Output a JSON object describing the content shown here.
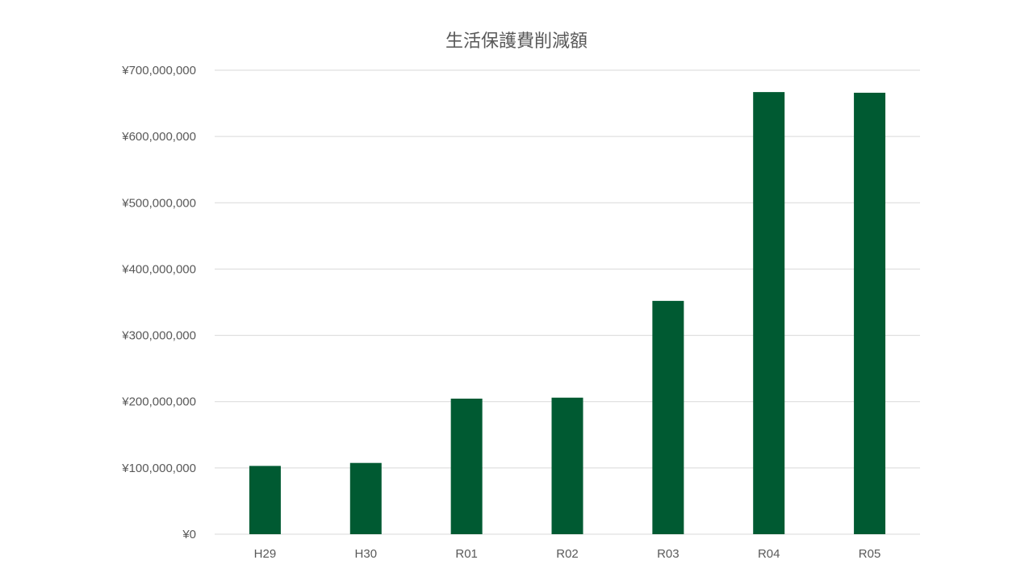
{
  "chart_data": {
    "type": "bar",
    "title": "生活保護費削減額",
    "xlabel": "",
    "ylabel": "",
    "categories": [
      "H29",
      "H30",
      "R01",
      "R02",
      "R03",
      "R04",
      "R05"
    ],
    "series": [
      {
        "values": [
          103000000,
          107500000,
          204500000,
          206000000,
          352000000,
          667000000,
          666000000
        ]
      }
    ],
    "ylim": [
      0,
      700000000
    ],
    "yticks": [
      0,
      100000000,
      200000000,
      300000000,
      400000000,
      500000000,
      600000000,
      700000000
    ],
    "ytick_labels": [
      "¥0",
      "¥100,000,000",
      "¥200,000,000",
      "¥300,000,000",
      "¥400,000,000",
      "¥500,000,000",
      "¥600,000,000",
      "¥700,000,000"
    ],
    "grid": true,
    "legend": "none",
    "colors": {
      "bar": "#005a32",
      "grid": "#d9d9d9",
      "text": "#595959"
    }
  }
}
